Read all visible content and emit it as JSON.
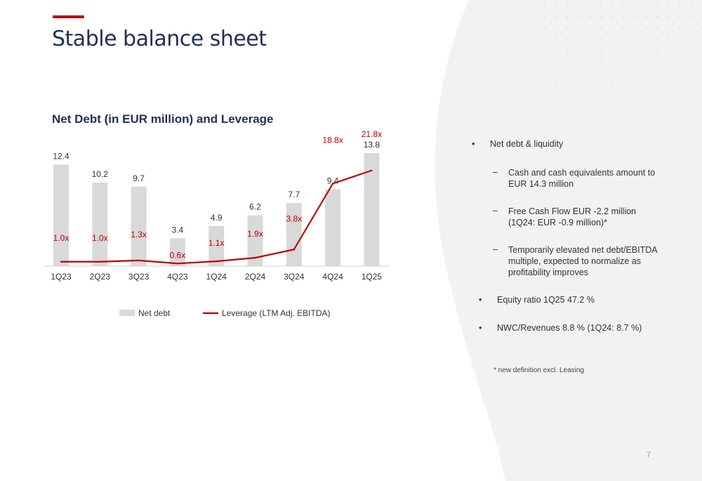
{
  "slide": {
    "title": "Stable balance sheet",
    "page_number": "7",
    "accent_color": "#c00000",
    "title_color": "#1f3152"
  },
  "bullets": {
    "items": [
      {
        "marker": "•",
        "text": "Net debt & liquidity",
        "level": 1
      },
      {
        "marker": "–",
        "text": "Cash and cash equivalents amount to EUR 14.3 million",
        "level": 2
      },
      {
        "marker": "–",
        "text": "Free Cash Flow EUR -2.2 million (1Q24: EUR -0.9 million)*",
        "level": 2
      },
      {
        "marker": "–",
        "text": "Temporarily elevated net debt/EBITDA multiple, expected to normalize as profitability improves",
        "level": 2
      },
      {
        "marker": "•",
        "text": "Equity ratio 1Q25 47.2 %",
        "level": 1
      },
      {
        "marker": "•",
        "text": "NWC/Revenues 8.8 % (1Q24: 8.7 %)",
        "level": 1
      }
    ],
    "footnote": "* new definition excl. Leasing"
  },
  "chart_data": {
    "type": "bar",
    "title": "Net Debt (in EUR million) and Leverage",
    "categories": [
      "1Q23",
      "2Q23",
      "3Q23",
      "4Q23",
      "1Q24",
      "2Q24",
      "3Q24",
      "4Q24",
      "1Q25"
    ],
    "series": [
      {
        "name": "Net debt",
        "type": "bar",
        "color": "#d9d9d9",
        "values": [
          12.4,
          10.2,
          9.7,
          3.4,
          4.9,
          6.2,
          7.7,
          9.4,
          13.8
        ],
        "labels": [
          "12.4",
          "10.2",
          "9.7",
          "3.4",
          "4.9",
          "6.2",
          "7.7",
          "9.4",
          "13.8"
        ]
      },
      {
        "name": "Leverage (LTM Adj. EBITDA)",
        "type": "line",
        "color": "#c00000",
        "values": [
          1.0,
          1.0,
          1.3,
          0.6,
          1.1,
          1.9,
          3.8,
          18.8,
          21.8
        ],
        "labels": [
          "1.0x",
          "1.0x",
          "1.3x",
          "0.6x",
          "1.1x",
          "1.9x",
          "3.8x",
          "18.8x",
          "21.8x"
        ]
      }
    ],
    "ylim": [
      0,
      15
    ],
    "y2lim": [
      0,
      28
    ],
    "grid": false,
    "legend": "bottom"
  }
}
